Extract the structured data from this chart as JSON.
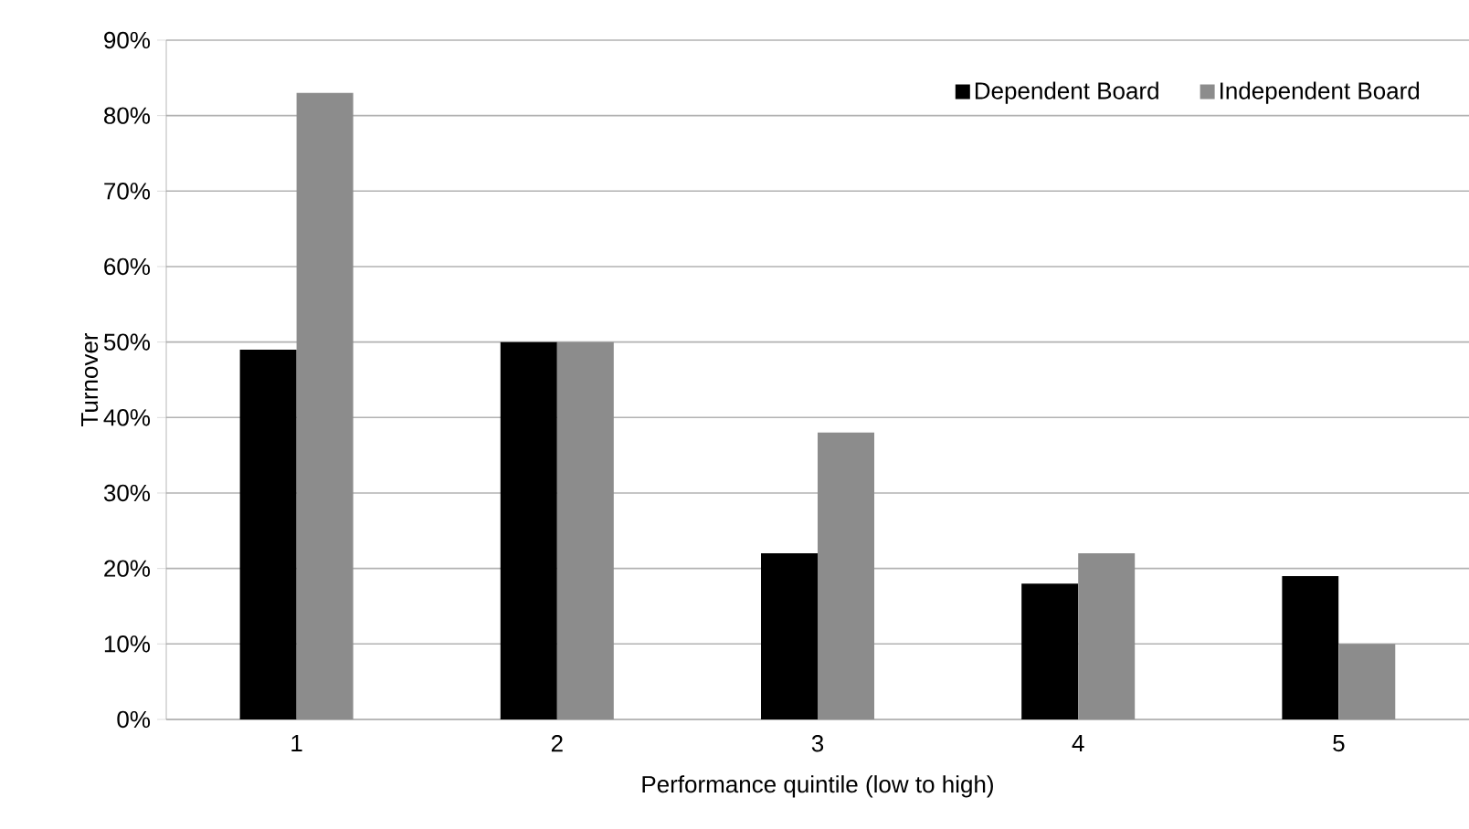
{
  "chart_data": {
    "type": "bar",
    "xlabel": "Performance quintile (low to high)",
    "ylabel": "Turnover",
    "categories": [
      "1",
      "2",
      "3",
      "4",
      "5"
    ],
    "series": [
      {
        "name": "Dependent Board",
        "color": "#000000",
        "values": [
          49,
          50,
          22,
          18,
          19
        ]
      },
      {
        "name": "Independent Board",
        "color": "#8c8c8c",
        "values": [
          83,
          50,
          38,
          22,
          10
        ]
      }
    ],
    "ylim": [
      0,
      90
    ],
    "yticks": [
      {
        "value": 0,
        "label": "0%"
      },
      {
        "value": 10,
        "label": "10%"
      },
      {
        "value": 20,
        "label": "20%"
      },
      {
        "value": 30,
        "label": "30%"
      },
      {
        "value": 40,
        "label": "40%"
      },
      {
        "value": 50,
        "label": "50%"
      },
      {
        "value": 60,
        "label": "60%"
      },
      {
        "value": 70,
        "label": "70%"
      },
      {
        "value": 80,
        "label": "80%"
      },
      {
        "value": 90,
        "label": "90%"
      }
    ],
    "grid": "y",
    "legend": "top right"
  }
}
